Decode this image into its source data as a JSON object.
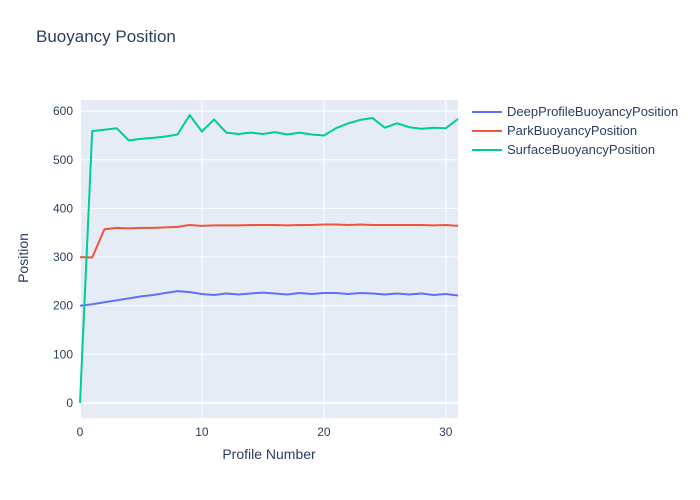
{
  "chart_data": {
    "type": "line",
    "title": "Buoyancy Position",
    "xlabel": "Profile Number",
    "ylabel": "Position",
    "x": [
      0,
      1,
      2,
      3,
      4,
      5,
      6,
      7,
      8,
      9,
      10,
      11,
      12,
      13,
      14,
      15,
      16,
      17,
      18,
      19,
      20,
      21,
      22,
      23,
      24,
      25,
      26,
      27,
      28,
      29,
      30,
      31
    ],
    "series": [
      {
        "name": "DeepProfileBuoyancyPosition",
        "color": "#636EFA",
        "values": [
          200,
          203,
          207,
          211,
          215,
          219,
          222,
          226,
          230,
          228,
          224,
          222,
          225,
          223,
          225,
          227,
          225,
          223,
          226,
          224,
          226,
          226,
          224,
          226,
          225,
          223,
          225,
          223,
          225,
          222,
          224,
          221
        ]
      },
      {
        "name": "ParkBuoyancyPosition",
        "color": "#EF553B",
        "values": [
          300,
          299,
          357,
          360,
          359,
          360,
          360,
          361,
          362,
          366,
          364,
          365,
          365,
          365,
          366,
          366,
          366,
          365,
          366,
          366,
          367,
          367,
          366,
          367,
          366,
          366,
          366,
          366,
          366,
          365,
          366,
          364
        ]
      },
      {
        "name": "SurfaceBuoyancyPosition",
        "color": "#00CC96",
        "values": [
          0,
          559,
          562,
          565,
          540,
          543,
          545,
          548,
          552,
          592,
          558,
          583,
          556,
          553,
          556,
          553,
          557,
          552,
          556,
          552,
          550,
          565,
          575,
          582,
          586,
          566,
          575,
          567,
          564,
          566,
          565,
          584
        ]
      }
    ],
    "xticks": [
      0,
      10,
      20,
      30
    ],
    "yticks": [
      0,
      100,
      200,
      300,
      400,
      500,
      600
    ],
    "xlim": [
      0,
      31
    ],
    "ylim": [
      -31,
      623
    ],
    "grid": true,
    "legend_position": "right",
    "plot_bg_color": "#E5ECF6",
    "grid_color": "#FFFFFF",
    "font_color": "#2A3F5F"
  }
}
